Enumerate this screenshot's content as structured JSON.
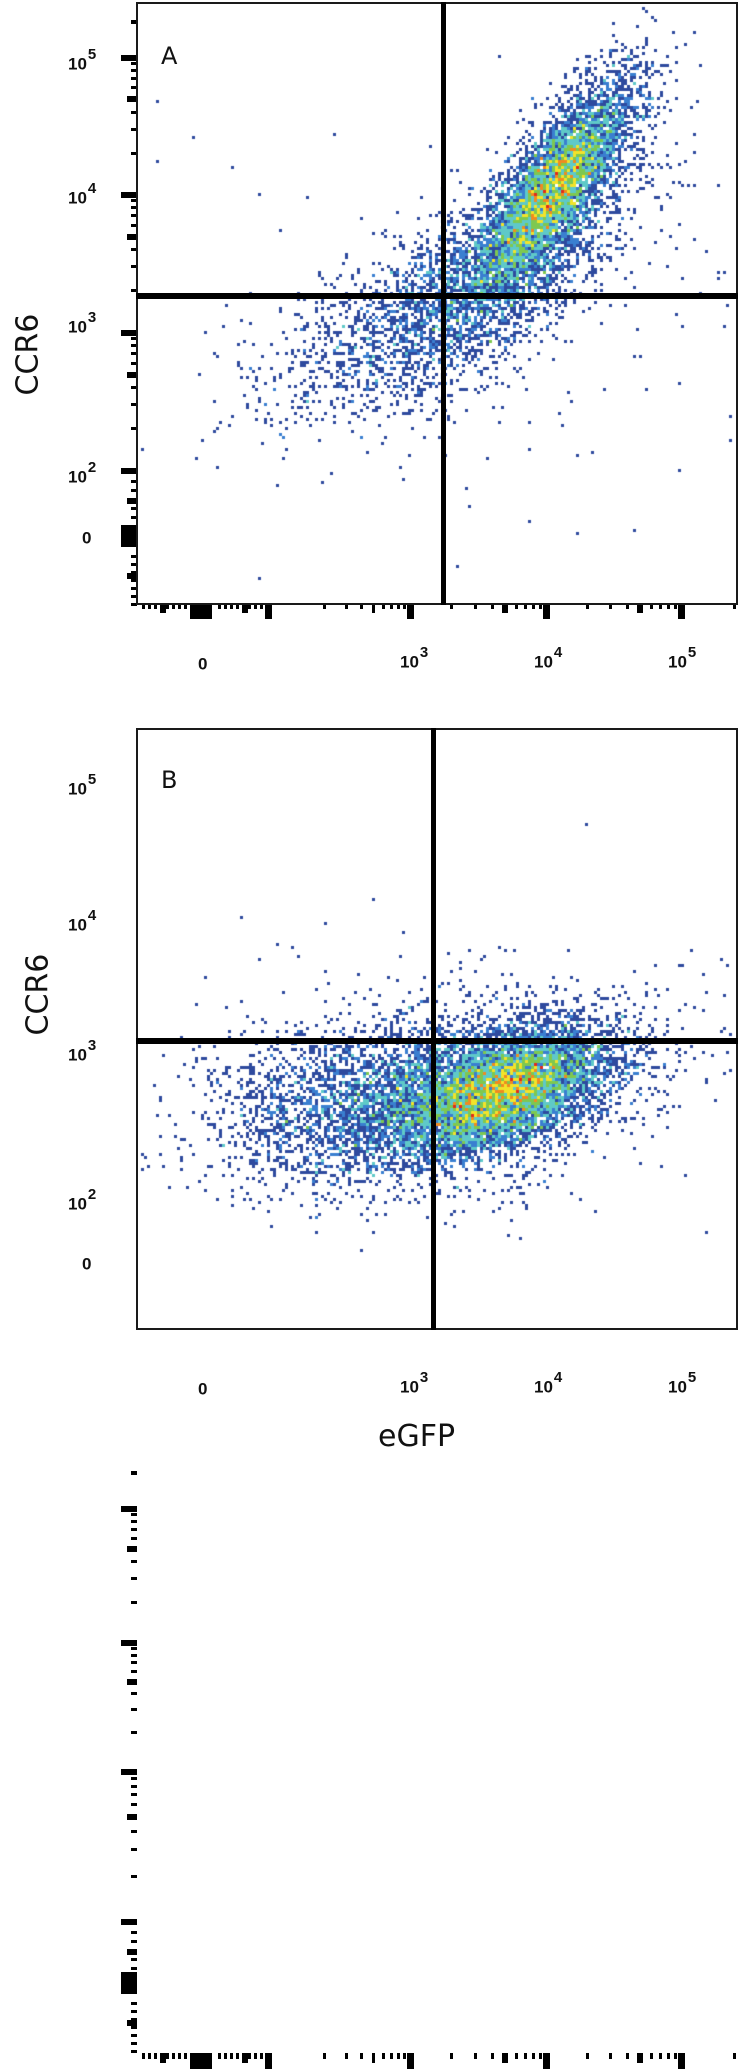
{
  "chart_data": [
    {
      "type": "scatter",
      "subtype": "flow-cytometry-density-plot",
      "panel_label": "A",
      "xlabel": "eGFP",
      "ylabel": "CCR6",
      "x_scale": "biexponential",
      "y_scale": "biexponential",
      "x_tick_labels": [
        "0",
        "10^3",
        "10^4",
        "10^5"
      ],
      "y_tick_labels": [
        "0",
        "10^2",
        "10^3",
        "10^4",
        "10^5"
      ],
      "quadrant_gate": {
        "x": 1500,
        "y": 1700
      },
      "population": {
        "description": "Single diagonal population, mostly CCR6+ eGFP+ (upper right), peak near eGFP 1.2e4 / CCR6 1.1e4",
        "peak": {
          "x": 12000,
          "y": 11000
        },
        "dominant_quadrant": "upper-right"
      },
      "colormap": [
        "#2e4a9e",
        "#3a7fd0",
        "#5fc9c8",
        "#7ec850",
        "#f2e32a",
        "#f08a20",
        "#e02a1c"
      ]
    },
    {
      "type": "scatter",
      "subtype": "flow-cytometry-density-plot",
      "panel_label": "B",
      "xlabel": "eGFP",
      "ylabel": "CCR6",
      "x_scale": "biexponential",
      "y_scale": "biexponential",
      "x_tick_labels": [
        "0",
        "10^3",
        "10^4",
        "10^5"
      ],
      "y_tick_labels": [
        "0",
        "10^2",
        "10^3",
        "10^4",
        "10^5"
      ],
      "quadrant_gate": {
        "x": 1300,
        "y": 1200
      },
      "population": {
        "description": "Population mostly CCR6- ; eGFP+ cluster peak near eGFP 5e3 / CCR6 5e2, broad eGFP- tail",
        "peak": {
          "x": 5000,
          "y": 500
        },
        "dominant_quadrant": "lower-right"
      },
      "colormap": [
        "#2e4a9e",
        "#3a7fd0",
        "#5fc9c8",
        "#7ec850",
        "#f2e32a",
        "#f08a20",
        "#e02a1c"
      ]
    }
  ],
  "panels": [
    {
      "letter": "A",
      "y_title": "CCR6",
      "y_ticks": [
        {
          "base": "10",
          "exp": "5"
        },
        {
          "base": "10",
          "exp": "4"
        },
        {
          "base": "10",
          "exp": "3"
        },
        {
          "base": "10",
          "exp": "2"
        },
        {
          "base": "0",
          "exp": ""
        }
      ],
      "x_ticks": [
        {
          "base": "0",
          "exp": ""
        },
        {
          "base": "10",
          "exp": "3"
        },
        {
          "base": "10",
          "exp": "4"
        },
        {
          "base": "10",
          "exp": "5"
        }
      ]
    },
    {
      "letter": "B",
      "y_title": "CCR6",
      "y_ticks": [
        {
          "base": "10",
          "exp": "5"
        },
        {
          "base": "10",
          "exp": "4"
        },
        {
          "base": "10",
          "exp": "3"
        },
        {
          "base": "10",
          "exp": "2"
        },
        {
          "base": "0",
          "exp": ""
        }
      ],
      "x_ticks": [
        {
          "base": "0",
          "exp": ""
        },
        {
          "base": "10",
          "exp": "3"
        },
        {
          "base": "10",
          "exp": "4"
        },
        {
          "base": "10",
          "exp": "5"
        }
      ]
    }
  ],
  "x_title": "eGFP"
}
